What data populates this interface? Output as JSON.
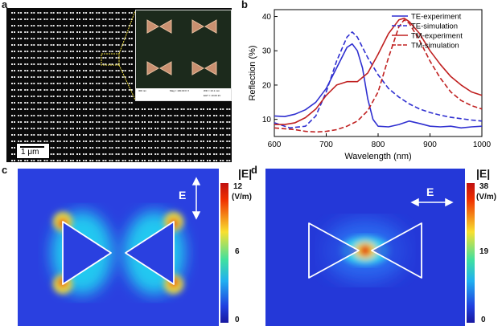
{
  "panel_a": {
    "letter": "a",
    "scale_bar": "1 μm",
    "inset_footer": {
      "left": "300 nm",
      "mid": "Mag = 100.00 K X",
      "right_top": "WD = 10.1 mm",
      "right_bottom": "EHT = 10.00 kV"
    }
  },
  "panel_b": {
    "letter": "b",
    "legend": [
      "TE-experiment",
      "TE-simulation",
      "TM-experiment",
      "TM-simulation"
    ],
    "colors": {
      "te": "#2f2fd0",
      "tm": "#c02020"
    }
  },
  "chart_data": {
    "type": "line",
    "xlabel": "Wavelength (nm)",
    "ylabel": "Reflection (%)",
    "xlim": [
      600,
      1000
    ],
    "ylim": [
      5,
      42
    ],
    "xticks": [
      600,
      700,
      800,
      900,
      1000
    ],
    "yticks": [
      10,
      20,
      30,
      40
    ],
    "grid": false,
    "legend_position": "top-right",
    "series": [
      {
        "name": "TE-experiment",
        "style": "solid",
        "color": "#2f2fd0",
        "x": [
          600,
          620,
          640,
          660,
          680,
          700,
          720,
          740,
          750,
          760,
          770,
          780,
          790,
          800,
          820,
          840,
          860,
          880,
          900,
          920,
          940,
          960,
          980,
          1000
        ],
        "y": [
          11,
          10.8,
          11.5,
          12.8,
          15,
          19,
          25,
          31,
          32,
          30,
          25,
          16,
          10,
          8,
          7.8,
          8.5,
          9.5,
          8.8,
          8,
          7.8,
          8,
          7.5,
          7.8,
          8
        ]
      },
      {
        "name": "TE-simulation",
        "style": "dashed",
        "color": "#2f2fd0",
        "x": [
          600,
          630,
          660,
          680,
          700,
          720,
          740,
          750,
          760,
          770,
          780,
          800,
          820,
          840,
          860,
          880,
          900,
          920,
          940,
          960,
          980,
          1000
        ],
        "y": [
          9,
          7.5,
          8,
          11,
          18,
          27,
          34,
          35.5,
          34,
          31,
          28,
          23,
          19,
          16.5,
          14.5,
          13,
          12,
          11.2,
          10.6,
          10.2,
          9.8,
          9.5
        ]
      },
      {
        "name": "TM-experiment",
        "style": "solid",
        "color": "#c02020",
        "x": [
          600,
          620,
          640,
          660,
          680,
          700,
          720,
          740,
          760,
          780,
          800,
          820,
          840,
          850,
          860,
          880,
          900,
          920,
          940,
          960,
          980,
          1000
        ],
        "y": [
          8.5,
          8.5,
          9,
          10.5,
          13,
          17,
          20,
          21,
          21,
          23.5,
          29,
          35,
          39,
          39.5,
          38.5,
          35,
          30,
          26,
          22.5,
          20,
          18,
          17
        ]
      },
      {
        "name": "TM-simulation",
        "style": "dashed",
        "color": "#c02020",
        "x": [
          600,
          640,
          660,
          680,
          700,
          720,
          740,
          760,
          780,
          800,
          820,
          840,
          850,
          860,
          880,
          900,
          920,
          940,
          960,
          980,
          1000
        ],
        "y": [
          7.5,
          7,
          6.5,
          6.3,
          6.5,
          7,
          8,
          9.5,
          12.5,
          18,
          28,
          37,
          39,
          38,
          33,
          27,
          22,
          18,
          15.5,
          14,
          13
        ]
      }
    ]
  },
  "panel_c": {
    "letter": "c",
    "field_label": "E",
    "cbar_title": "|E|",
    "cbar_unit": "(V/m)",
    "cbar_max": "12",
    "cbar_mid": "6",
    "cbar_min": "0"
  },
  "panel_d": {
    "letter": "d",
    "field_label": "E",
    "cbar_title": "|E|",
    "cbar_unit": "(V/m)",
    "cbar_max": "38",
    "cbar_mid": "19",
    "cbar_min": "0"
  }
}
